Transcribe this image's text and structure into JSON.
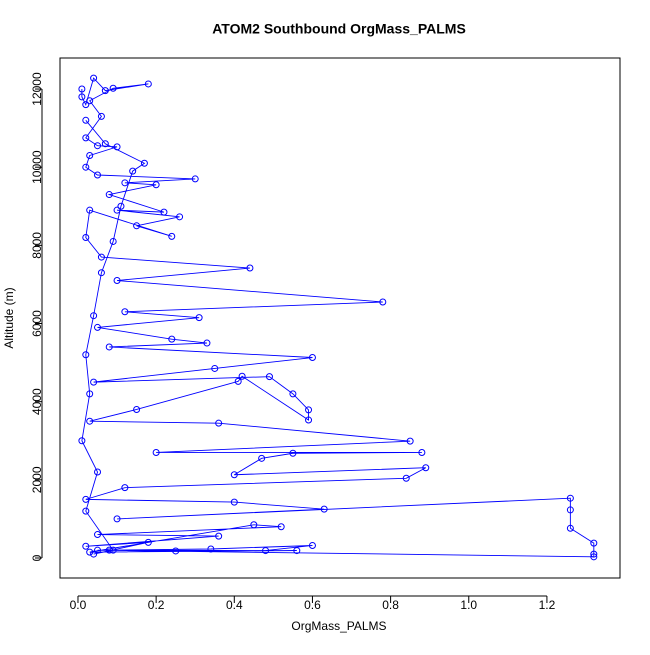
{
  "chart_data": {
    "type": "line",
    "title": "ATOM2 Southbound OrgMass_PALMS",
    "x_label": "OrgMass_PALMS",
    "y_label": "Altitude (m)",
    "color": "#0000ff",
    "markers": "open-circle",
    "x": [
      0.01,
      0.01,
      0.02,
      0.04,
      0.07,
      0.18,
      0.09,
      0.03,
      0.06,
      0.02,
      0.05,
      0.1,
      0.03,
      0.02,
      0.05,
      0.3,
      0.12,
      0.2,
      0.08,
      0.22,
      0.1,
      0.26,
      0.15,
      0.24,
      0.03,
      0.02,
      0.06,
      0.44,
      0.1,
      0.78,
      0.12,
      0.31,
      0.05,
      0.24,
      0.33,
      0.08,
      0.6,
      0.35,
      0.04,
      0.49,
      0.55,
      0.59,
      0.59,
      0.42,
      0.41,
      0.15,
      0.03,
      0.36,
      0.85,
      0.2,
      0.88,
      0.55,
      0.47,
      0.4,
      0.89,
      0.84,
      0.12,
      0.02,
      0.4,
      0.63,
      0.1,
      1.26,
      1.26,
      1.26,
      1.32,
      1.32,
      1.32,
      0.05,
      0.48,
      0.6,
      0.34,
      0.08,
      0.25,
      0.56,
      0.03,
      0.45,
      0.52,
      0.05,
      0.36,
      0.02,
      0.18,
      0.04,
      0.09,
      0.02,
      0.05,
      0.01,
      0.03,
      0.02,
      0.04,
      0.06,
      0.09,
      0.11,
      0.14,
      0.17,
      0.07,
      0.02
    ],
    "values": [
      12000,
      11800,
      11600,
      12280,
      11960,
      12130,
      12020,
      11700,
      11300,
      10750,
      10550,
      10520,
      10300,
      10000,
      9800,
      9700,
      9600,
      9550,
      9300,
      8850,
      8900,
      8730,
      8500,
      8230,
      8900,
      8200,
      7700,
      7420,
      7100,
      6550,
      6300,
      6150,
      5900,
      5600,
      5500,
      5400,
      5130,
      4850,
      4500,
      4640,
      4200,
      3790,
      3530,
      4650,
      4520,
      3800,
      3500,
      3450,
      2990,
      2700,
      2700,
      2680,
      2550,
      2130,
      2310,
      2040,
      1800,
      1500,
      1430,
      1250,
      1000,
      1530,
      1230,
      760,
      380,
      100,
      30,
      200,
      190,
      320,
      230,
      200,
      180,
      190,
      150,
      850,
      800,
      600,
      560,
      300,
      400,
      100,
      200,
      1200,
      2200,
      3000,
      4200,
      5200,
      6200,
      7300,
      8100,
      9000,
      9900,
      10100,
      10600,
      11200
    ],
    "xlim": [
      -0.046,
      1.387
    ],
    "ylim": [
      -512,
      12794
    ],
    "xticks": [
      {
        "value": 0,
        "label": "0.0"
      },
      0.2,
      0.4,
      0.6,
      0.8,
      {
        "value": 1,
        "label": "1.0"
      },
      1.2
    ],
    "yticks": [
      0,
      2000,
      4000,
      6000,
      8000,
      10000,
      12000
    ]
  }
}
